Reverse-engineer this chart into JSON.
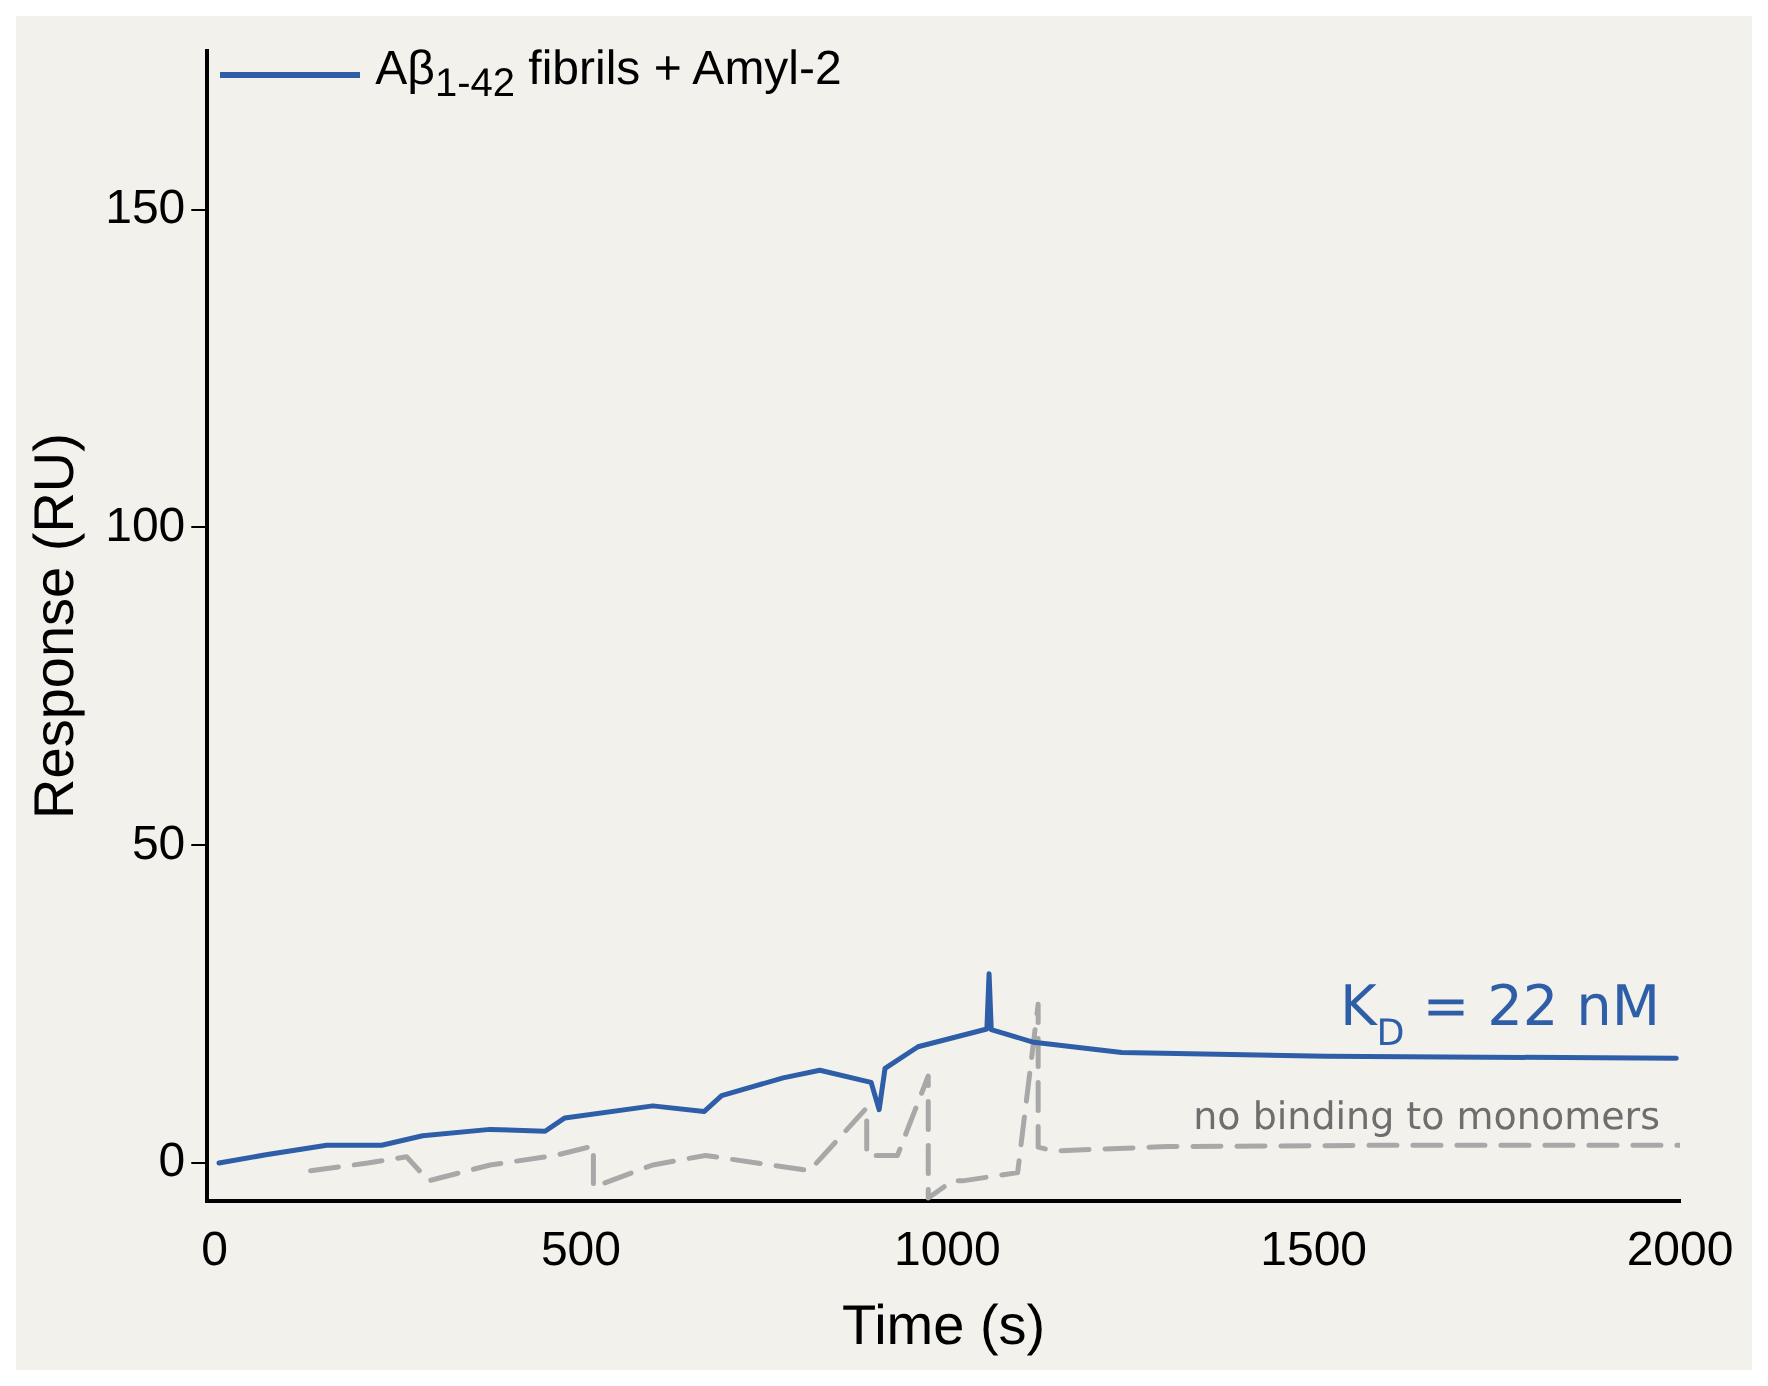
{
  "chart_data": {
    "type": "line",
    "xlabel": "Time (s)",
    "ylabel": "Response (RU)",
    "xlim": [
      -10,
      2000
    ],
    "ylim": [
      -6,
      175
    ],
    "xticks": [
      0,
      500,
      1000,
      1500,
      2000
    ],
    "yticks": [
      0,
      50,
      100,
      150
    ],
    "grid": false,
    "legend": "top left",
    "marker": "none",
    "series": [
      {
        "name": "Aβ$_{1-42}$ fibrils + Amyl-2",
        "color": "#2f5ea8",
        "line_style": "solid",
        "x": [
          6,
          70,
          153,
          228,
          284,
          376,
          451,
          478,
          598,
          668,
          692,
          776,
          826,
          896,
          907,
          915,
          960,
          1054,
          1057,
          1060,
          1118,
          1238,
          1516,
          1995
        ],
        "values": [
          0,
          1.3,
          2.8,
          2.8,
          4.3,
          5.3,
          5.0,
          7.1,
          9.0,
          8.1,
          10.6,
          13.4,
          14.6,
          12.7,
          8.4,
          14.9,
          18.3,
          21.1,
          29.8,
          21,
          19,
          17.4,
          16.8,
          16.5
        ]
      },
      {
        "color": "#a8a8a8",
        "line_style": "dashed",
        "x": [
          131,
          209,
          262,
          292,
          376,
          465,
          517,
          517,
          598,
          670,
          812,
          890,
          890,
          932,
          974,
          974,
          1007,
          1021,
          1096,
          1124,
          1124,
          1146,
          1300,
          1600,
          2000
        ],
        "values": [
          -1.2,
          0,
          1,
          -2.8,
          -0.3,
          1.2,
          2.7,
          -3.8,
          -0.3,
          1.2,
          -1.2,
          8.7,
          1.2,
          1.2,
          13.7,
          -5.5,
          -2.8,
          -2.8,
          -1.5,
          25,
          2.5,
          1.9,
          2.6,
          2.8,
          2.8
        ]
      }
    ],
    "annotations": [
      "K$_{D}$ = 22 nM",
      "no binding to monomers"
    ]
  }
}
